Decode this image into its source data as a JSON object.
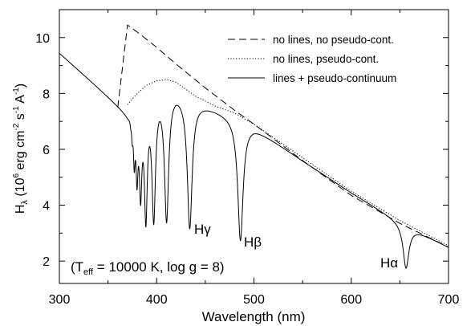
{
  "chart_data": {
    "type": "line",
    "xlabel": "Wavelength (nm)",
    "ylabel": {
      "base": "H",
      "base_sub": "λ",
      "open": " (10",
      "exp6": "6",
      "unit": " erg cm",
      "exp_cm": "-2",
      "s": " s",
      "exp_s": "-1",
      "A": " A",
      "exp_A": "-1",
      "close": ")"
    },
    "xlim": [
      300,
      700
    ],
    "ylim": [
      1.2,
      11.0
    ],
    "xticks": [
      300,
      400,
      500,
      600,
      700
    ],
    "yticks": [
      2,
      4,
      6,
      8,
      10
    ],
    "grid": false,
    "legend_position": "top-right",
    "legend": [
      {
        "label": "no lines, no pseudo-cont.",
        "style": "dashed"
      },
      {
        "label": "no lines, pseudo-cont.",
        "style": "dotted"
      },
      {
        "label": "lines + pseudo-continuum",
        "style": "solid"
      }
    ],
    "annotations": [
      {
        "text": "Hγ",
        "base": "H",
        "greek": "γ",
        "x": 437,
        "y": 3.0
      },
      {
        "text": "Hβ",
        "base": "H",
        "greek": "β",
        "x": 489,
        "y": 2.5
      },
      {
        "text": "Hα",
        "base": "H",
        "greek": "α",
        "x": 654,
        "y": 1.55
      }
    ],
    "param_text": {
      "open": "(T",
      "sub": "eff",
      "rest": " = 10000 K, log g = 8)"
    },
    "series": [
      {
        "style": "dashed",
        "x": [
          360,
          370,
          380,
          400,
          420,
          450,
          480,
          500,
          550,
          600,
          650,
          700
        ],
        "y": [
          7.5,
          10.45,
          10.2,
          9.65,
          9.05,
          8.2,
          7.4,
          6.9,
          5.6,
          4.35,
          3.35,
          2.5
        ]
      },
      {
        "style": "dotted",
        "x": [
          370,
          380,
          390,
          400,
          410,
          420,
          430,
          440,
          460,
          480,
          500,
          550,
          600,
          650,
          700
        ],
        "y": [
          7.6,
          8.0,
          8.3,
          8.45,
          8.5,
          8.4,
          8.15,
          7.9,
          7.55,
          7.3,
          6.9,
          5.7,
          4.5,
          3.45,
          2.55
        ]
      },
      {
        "style": "solid",
        "continuum": {
          "x": [
            300,
            360,
            370,
            380,
            390,
            400,
            410,
            420,
            430,
            440,
            460,
            480,
            500,
            550,
            600,
            650,
            700
          ],
          "y": [
            9.45,
            7.6,
            7.3,
            7.5,
            7.9,
            8.15,
            8.25,
            8.15,
            7.95,
            7.75,
            7.45,
            7.15,
            6.8,
            5.6,
            4.45,
            3.4,
            2.5
          ]
        },
        "lines": [
          {
            "x": 373.4,
            "depth": 7.2,
            "width": 0.7
          },
          {
            "x": 374.9,
            "depth": 6.8,
            "width": 0.8
          },
          {
            "x": 377.0,
            "depth": 5.9,
            "width": 1.0
          },
          {
            "x": 379.8,
            "depth": 5.4,
            "width": 1.2
          },
          {
            "x": 383.5,
            "depth": 4.8,
            "width": 1.5
          },
          {
            "x": 388.9,
            "depth": 3.85,
            "width": 1.8
          },
          {
            "x": 397.0,
            "depth": 3.75,
            "width": 2.2
          },
          {
            "x": 410.2,
            "depth": 3.6,
            "width": 2.6
          },
          {
            "x": 434.0,
            "depth": 3.25,
            "width": 3.0
          },
          {
            "x": 486.1,
            "depth": 2.75,
            "width": 3.3
          },
          {
            "x": 656.3,
            "depth": 1.75,
            "width": 3.6
          }
        ]
      }
    ]
  }
}
